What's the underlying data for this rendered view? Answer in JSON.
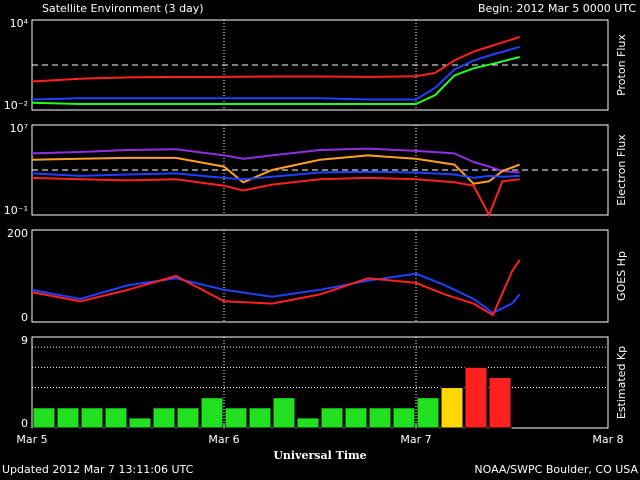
{
  "header": {
    "title": "Satellite Environment (3 day)",
    "begin": "Begin:  2012 Mar 5 0000 UTC"
  },
  "footer": {
    "updated": "Updated 2012 Mar  7 13:11:06 UTC",
    "source": "NOAA/SWPC Boulder, CO USA"
  },
  "chart_data": [
    {
      "type": "line",
      "y_label": "Proton Flux",
      "log": true,
      "xlim": [
        0,
        3
      ],
      "xticks": [
        0,
        1,
        2,
        3
      ],
      "ylim": [
        0.01,
        10000
      ],
      "yticks": [
        {
          "value": 0.01,
          "label": "10⁻²"
        },
        {
          "value": 10000,
          "label": "10⁴"
        }
      ],
      "threshold": 10,
      "x": [
        0,
        0.25,
        0.5,
        0.75,
        1,
        1.25,
        1.5,
        1.75,
        2,
        2.1,
        2.2,
        2.3,
        2.4,
        2.54
      ],
      "series": [
        {
          "color": "#ff2020",
          "values": [
            0.8,
            1.2,
            1.5,
            1.6,
            1.6,
            1.7,
            1.7,
            1.6,
            1.8,
            3,
            20,
            80,
            200,
            740
          ]
        },
        {
          "color": "#2040ff",
          "values": [
            0.05,
            0.06,
            0.06,
            0.06,
            0.06,
            0.06,
            0.06,
            0.05,
            0.05,
            0.3,
            5,
            20,
            50,
            160
          ]
        },
        {
          "color": "#20ff20",
          "values": [
            0.03,
            0.025,
            0.025,
            0.025,
            0.025,
            0.025,
            0.025,
            0.025,
            0.025,
            0.1,
            2,
            6,
            12,
            34
          ]
        }
      ]
    },
    {
      "type": "line",
      "y_label": "Electron Flux",
      "log": true,
      "xlim": [
        0,
        3
      ],
      "xticks": [
        0,
        1,
        2,
        3
      ],
      "ylim": [
        0.1,
        10000000
      ],
      "yticks": [
        {
          "value": 0.1,
          "label": "10⁻¹"
        },
        {
          "value": 10000000,
          "label": "10⁷"
        }
      ],
      "threshold": 1000,
      "x": [
        0,
        0.25,
        0.5,
        0.75,
        1,
        1.1,
        1.25,
        1.5,
        1.75,
        2,
        2.2,
        2.3,
        2.38,
        2.45,
        2.54
      ],
      "series": [
        {
          "color": "#9030e0",
          "values": [
            30000,
            40000,
            60000,
            70000,
            20000,
            10000,
            20000,
            60000,
            80000,
            50000,
            30000,
            5000,
            2000,
            800,
            600
          ]
        },
        {
          "color": "#ffa020",
          "values": [
            8000,
            10000,
            12000,
            12000,
            2000,
            80,
            1000,
            8000,
            20000,
            10000,
            3000,
            60,
            100,
            800,
            3000
          ]
        },
        {
          "color": "#2040ff",
          "values": [
            500,
            300,
            400,
            500,
            200,
            150,
            250,
            600,
            700,
            600,
            400,
            200,
            300,
            250,
            300
          ]
        },
        {
          "color": "#ff2020",
          "values": [
            200,
            150,
            120,
            150,
            40,
            15,
            50,
            150,
            200,
            150,
            80,
            40,
            0.1,
            100,
            150
          ]
        }
      ]
    },
    {
      "type": "line",
      "y_label": "GOES Hp",
      "xlim": [
        0,
        3
      ],
      "xticks": [
        0,
        1,
        2,
        3
      ],
      "ylim": [
        0,
        200
      ],
      "yticks": [
        0,
        200
      ],
      "x": [
        0,
        0.25,
        0.5,
        0.75,
        1,
        1.25,
        1.5,
        1.75,
        2,
        2.15,
        2.3,
        2.4,
        2.5,
        2.54
      ],
      "series": [
        {
          "color": "#2040ff",
          "values": [
            70,
            50,
            80,
            95,
            70,
            55,
            70,
            90,
            105,
            80,
            50,
            20,
            40,
            60
          ]
        },
        {
          "color": "#ff2020",
          "values": [
            65,
            45,
            70,
            100,
            45,
            40,
            60,
            95,
            85,
            60,
            40,
            15,
            110,
            135
          ]
        }
      ]
    },
    {
      "type": "bar",
      "y_label": "Estimated Kp",
      "x_label": "Universal Time",
      "xlim": [
        0,
        3
      ],
      "xticks": [
        {
          "value": 0,
          "label": "Mar 5"
        },
        {
          "value": 1,
          "label": "Mar 6"
        },
        {
          "value": 2,
          "label": "Mar 7"
        },
        {
          "value": 3,
          "label": "Mar 8"
        }
      ],
      "ylim": [
        0,
        9
      ],
      "yticks": [
        0,
        9
      ],
      "levels": [
        4,
        6,
        8
      ],
      "x": [
        0,
        0.125,
        0.25,
        0.375,
        0.5,
        0.625,
        0.75,
        0.875,
        1,
        1.125,
        1.25,
        1.375,
        1.5,
        1.625,
        1.75,
        1.875,
        2,
        2.125,
        2.25,
        2.375
      ],
      "values": [
        2,
        2,
        2,
        2,
        1,
        2,
        2,
        3,
        2,
        2,
        3,
        1,
        2,
        2,
        2,
        2,
        3,
        4,
        6,
        5
      ],
      "colors": [
        "#20e020",
        "#20e020",
        "#20e020",
        "#20e020",
        "#20e020",
        "#20e020",
        "#20e020",
        "#20e020",
        "#20e020",
        "#20e020",
        "#20e020",
        "#20e020",
        "#20e020",
        "#20e020",
        "#20e020",
        "#20e020",
        "#20e020",
        "#ffd700",
        "#ff2020",
        "#ff2020"
      ]
    }
  ]
}
